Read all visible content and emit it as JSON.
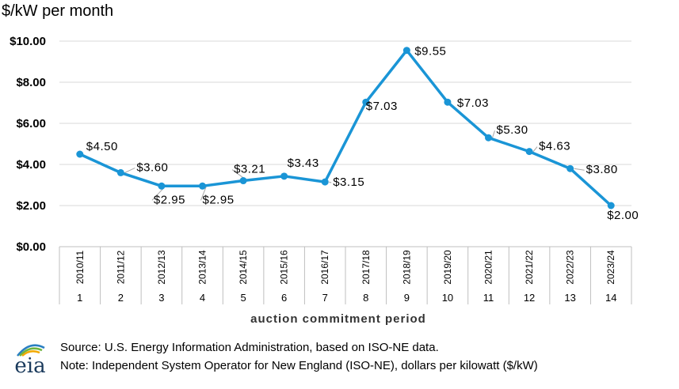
{
  "chart_data": {
    "type": "line",
    "title": "",
    "ylabel": "$/kW per month",
    "xlabel": "auction commitment period",
    "ylim": [
      0,
      10
    ],
    "yticks": [
      "$0.00",
      "$2.00",
      "$4.00",
      "$6.00",
      "$8.00",
      "$10.00"
    ],
    "ytick_values": [
      0,
      2,
      4,
      6,
      8,
      10
    ],
    "categories": [
      "2010/11",
      "2011/12",
      "2012/13",
      "2013/14",
      "2014/15",
      "2015/16",
      "2016/17",
      "2017/18",
      "2018/19",
      "2019/20",
      "2020/21",
      "2021/22",
      "2022/23",
      "2023/24"
    ],
    "index_labels": [
      "1",
      "2",
      "3",
      "4",
      "5",
      "6",
      "7",
      "8",
      "9",
      "10",
      "11",
      "12",
      "13",
      "14"
    ],
    "values": [
      4.5,
      3.6,
      2.95,
      2.95,
      3.21,
      3.43,
      3.15,
      7.03,
      9.55,
      7.03,
      5.3,
      4.63,
      3.8,
      2.0
    ],
    "data_labels": [
      "$4.50",
      "$3.60",
      "$2.95",
      "$2.95",
      "$3.21",
      "$3.43",
      "$3.15",
      "$7.03",
      "$9.55",
      "$7.03",
      "$5.30",
      "$4.63",
      "$3.80",
      "$2.00"
    ],
    "grid": true,
    "line_color": "#1a95d6"
  },
  "footer": {
    "source": "Source:  U.S. Energy Information Administration, based on ISO-NE data.",
    "note": "Note: Independent System Operator for New England (ISO-NE), dollars per kilowatt ($/kW)"
  },
  "logo": {
    "text": "eia",
    "icon": "eia-logo-icon"
  }
}
